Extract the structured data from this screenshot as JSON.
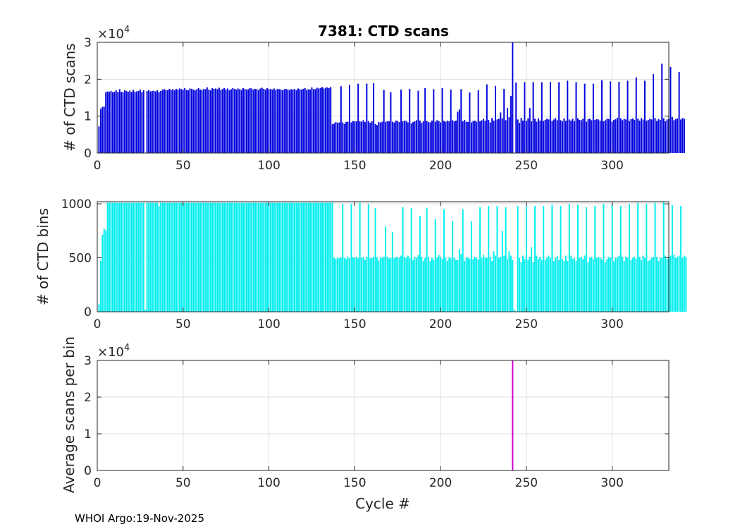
{
  "footer": "WHOI Argo:19-Nov-2025",
  "colors": {
    "scans": "#0000dd",
    "bins": "#00eeee",
    "avg": "#cc00cc",
    "axis": "#262626",
    "grid": "#dfdfdf"
  },
  "chart_data": [
    {
      "type": "bar",
      "title": "7381: CTD scans",
      "ylabel": "# of CTD scans",
      "xlabel": "",
      "multiplier": "×10",
      "multiplier_exp": "4",
      "xlim": [
        0,
        333
      ],
      "ylim": [
        0,
        3
      ],
      "xticks": [
        0,
        50,
        100,
        150,
        200,
        250,
        300
      ],
      "yticks": [
        0,
        1,
        2,
        3
      ],
      "grid": true,
      "color": "#0000dd",
      "values_desc": "values in units of 10^4 scans, one per cycle 1..333",
      "values": [
        0.72,
        1.2,
        1.25,
        1.26,
        1.65,
        1.67,
        1.66,
        1.68,
        1.65,
        1.66,
        1.7,
        1.65,
        1.73,
        1.66,
        1.65,
        1.7,
        1.68,
        1.66,
        1.69,
        1.65,
        1.71,
        1.66,
        1.67,
        1.68,
        1.72,
        1.65,
        1.7,
        0.0,
        1.68,
        1.7,
        1.67,
        1.68,
        1.69,
        1.67,
        1.7,
        1.65,
        1.68,
        1.72,
        1.73,
        1.71,
        1.7,
        1.74,
        1.71,
        1.73,
        1.7,
        1.74,
        1.72,
        1.75,
        1.73,
        1.72,
        1.76,
        1.71,
        1.7,
        1.75,
        1.74,
        1.72,
        1.7,
        1.73,
        1.76,
        1.72,
        1.71,
        1.74,
        1.73,
        1.78,
        1.72,
        1.7,
        1.76,
        1.74,
        1.75,
        1.73,
        1.77,
        1.71,
        1.74,
        1.76,
        1.72,
        1.75,
        1.7,
        1.73,
        1.76,
        1.74,
        1.72,
        1.75,
        1.73,
        1.71,
        1.76,
        1.74,
        1.72,
        1.73,
        1.76,
        1.75,
        1.72,
        1.74,
        1.73,
        1.71,
        1.75,
        1.77,
        1.74,
        1.72,
        1.76,
        1.73,
        1.74,
        1.72,
        1.75,
        1.71,
        1.74,
        1.73,
        1.72,
        1.7,
        1.73,
        1.74,
        1.72,
        1.71,
        1.73,
        1.72,
        1.74,
        1.7,
        1.75,
        1.73,
        1.72,
        1.74,
        1.76,
        1.71,
        1.73,
        1.72,
        1.78,
        1.74,
        1.73,
        1.77,
        1.75,
        1.76,
        1.79,
        1.75,
        1.77,
        1.78,
        1.76,
        1.79,
        0.78,
        0.8,
        0.84,
        0.82,
        0.83,
        1.81,
        0.83,
        0.79,
        0.84,
        0.85,
        1.85,
        0.83,
        0.87,
        0.86,
        0.86,
        1.88,
        0.86,
        0.85,
        0.89,
        0.84,
        1.88,
        0.87,
        0.82,
        0.86,
        1.89,
        0.79,
        0.76,
        0.84,
        0.83,
        0.85,
        1.71,
        0.84,
        0.87,
        0.86,
        1.65,
        0.85,
        0.83,
        0.88,
        0.87,
        0.84,
        1.72,
        0.86,
        0.88,
        0.87,
        0.83,
        1.74,
        0.8,
        0.84,
        0.86,
        0.89,
        1.69,
        0.88,
        0.82,
        0.86,
        1.76,
        0.87,
        0.84,
        0.83,
        0.88,
        1.73,
        0.85,
        0.89,
        0.87,
        0.83,
        1.76,
        0.87,
        0.85,
        0.88,
        0.86,
        1.72,
        0.89,
        0.86,
        0.88,
        1.12,
        1.18,
        1.73,
        0.86,
        0.9,
        0.85,
        0.84,
        1.64,
        0.83,
        0.87,
        0.88,
        0.85,
        1.7,
        0.86,
        0.89,
        0.93,
        0.88,
        1.86,
        0.9,
        0.83,
        0.95,
        0.88,
        1.82,
        0.91,
        0.93,
        1.1,
        0.94,
        1.74,
        0.89,
        1.22,
        0.97,
        1.55,
        3.0,
        0.0,
        1.91,
        0.91,
        0.82,
        0.95,
        0.88,
        1.92,
        0.87,
        0.94,
        1.22,
        0.86,
        1.92,
        0.93,
        0.85,
        0.94,
        0.88,
        1.92,
        0.87,
        0.9,
        0.93,
        0.91,
        1.93,
        0.87,
        0.91,
        0.95,
        0.89,
        1.92,
        0.89,
        0.86,
        0.94,
        0.87,
        1.96,
        0.91,
        0.88,
        0.93,
        0.86,
        1.92,
        0.94,
        0.9,
        0.89,
        0.93,
        1.88,
        0.85,
        0.92,
        0.93,
        0.89,
        1.88,
        0.9,
        0.92,
        0.91,
        0.88,
        1.97,
        0.86,
        0.89,
        0.93,
        0.92,
        1.94,
        0.85,
        0.9,
        0.92,
        0.96,
        1.93,
        0.94,
        0.89,
        0.93,
        0.91,
        1.96,
        0.87,
        0.92,
        0.94,
        0.9,
        2.05,
        0.93,
        0.88,
        0.95,
        0.91,
        1.96,
        0.88,
        0.9,
        0.93,
        0.91,
        2.14,
        0.95,
        0.87,
        0.92,
        0.9,
        2.42,
        0.94,
        0.86,
        0.91,
        0.93,
        2.33,
        0.98,
        0.89,
        0.92,
        0.94,
        2.2,
        0.91,
        0.95,
        0.93
      ]
    },
    {
      "type": "bar",
      "title": "",
      "ylabel": "# of CTD bins",
      "xlabel": "",
      "xlim": [
        0,
        333
      ],
      "ylim": [
        0,
        1020
      ],
      "xticks": [
        0,
        50,
        100,
        150,
        200,
        250,
        300
      ],
      "yticks": [
        0,
        500,
        1000
      ],
      "grid": true,
      "color": "#00eeee",
      "values": [
        70,
        470,
        715,
        770,
        755,
        1010,
        1010,
        1010,
        1010,
        1010,
        1010,
        1010,
        1010,
        1010,
        1010,
        1010,
        1010,
        1010,
        1010,
        1010,
        1010,
        1010,
        1010,
        1010,
        1010,
        1010,
        1010,
        20,
        1010,
        1010,
        1010,
        1010,
        1010,
        1010,
        1010,
        980,
        1010,
        1010,
        1010,
        1010,
        1010,
        1010,
        1010,
        1010,
        1010,
        1010,
        1010,
        1010,
        1010,
        1010,
        1010,
        1010,
        1010,
        1010,
        1010,
        1010,
        1010,
        1010,
        1010,
        1010,
        1010,
        1010,
        1010,
        1010,
        1010,
        1010,
        1010,
        1010,
        1010,
        1010,
        1010,
        1010,
        1010,
        1010,
        1010,
        1010,
        1010,
        1010,
        1010,
        1010,
        1010,
        1010,
        1010,
        1010,
        1010,
        1010,
        1010,
        1010,
        1010,
        1010,
        1010,
        1010,
        1010,
        1010,
        1010,
        1010,
        1010,
        1010,
        1010,
        1010,
        1010,
        1010,
        1010,
        1010,
        1010,
        1010,
        1010,
        1010,
        1010,
        1010,
        1010,
        1010,
        1010,
        1010,
        1010,
        1010,
        1010,
        1010,
        1010,
        1010,
        1010,
        1010,
        1010,
        1010,
        1010,
        1010,
        1010,
        1010,
        1010,
        1010,
        1010,
        1010,
        1010,
        1010,
        1010,
        1010,
        1010,
        500,
        490,
        500,
        495,
        505,
        1000,
        500,
        490,
        510,
        495,
        1000,
        505,
        500,
        510,
        495,
        1010,
        500,
        505,
        480,
        510,
        1000,
        495,
        500,
        510,
        960,
        505,
        475,
        500,
        500,
        510,
        790,
        510,
        495,
        500,
        740,
        495,
        510,
        505,
        500,
        520,
        970,
        510,
        500,
        520,
        500,
        960,
        480,
        510,
        500,
        525,
        890,
        510,
        470,
        500,
        965,
        510,
        470,
        500,
        480,
        860,
        500,
        525,
        510,
        490,
        950,
        500,
        470,
        505,
        495,
        840,
        500,
        480,
        480,
        580,
        535,
        950,
        470,
        500,
        505,
        490,
        840,
        490,
        510,
        500,
        485,
        970,
        500,
        530,
        505,
        500,
        980,
        510,
        470,
        560,
        520,
        980,
        500,
        510,
        750,
        520,
        970,
        490,
        560,
        520,
        480,
        20,
        0,
        980,
        500,
        460,
        520,
        490,
        980,
        480,
        510,
        600,
        460,
        980,
        520,
        490,
        510,
        480,
        980,
        480,
        500,
        520,
        500,
        990,
        470,
        500,
        520,
        480,
        980,
        490,
        470,
        520,
        470,
        1000,
        520,
        490,
        500,
        470,
        990,
        500,
        510,
        490,
        520,
        970,
        460,
        500,
        510,
        490,
        980,
        500,
        510,
        500,
        485,
        1000,
        460,
        490,
        510,
        500,
        990,
        470,
        500,
        500,
        520,
        980,
        510,
        470,
        510,
        500,
        1000,
        480,
        500,
        510,
        490,
        1010,
        510,
        480,
        520,
        500,
        1000,
        470,
        480,
        500,
        510,
        1010,
        510,
        470,
        500,
        500,
        1020,
        520,
        490,
        510,
        520,
        990,
        530,
        500,
        510,
        520,
        980,
        500,
        520,
        510
      ]
    },
    {
      "type": "line",
      "title": "",
      "ylabel": "Average scans per bin",
      "xlabel": "Cycle #",
      "multiplier": "×10",
      "multiplier_exp": "4",
      "xlim": [
        0,
        333
      ],
      "ylim": [
        0,
        3
      ],
      "xticks": [
        0,
        50,
        100,
        150,
        200,
        250,
        300
      ],
      "yticks": [
        0,
        1,
        2,
        3
      ],
      "grid": true,
      "color": "#cc00cc",
      "spike_desc": "single vertical spike at cycle 242 exceeding the axis (value > 3 ×10^4); all other values near 0",
      "x": [
        242
      ],
      "values": [
        3.0
      ]
    }
  ]
}
